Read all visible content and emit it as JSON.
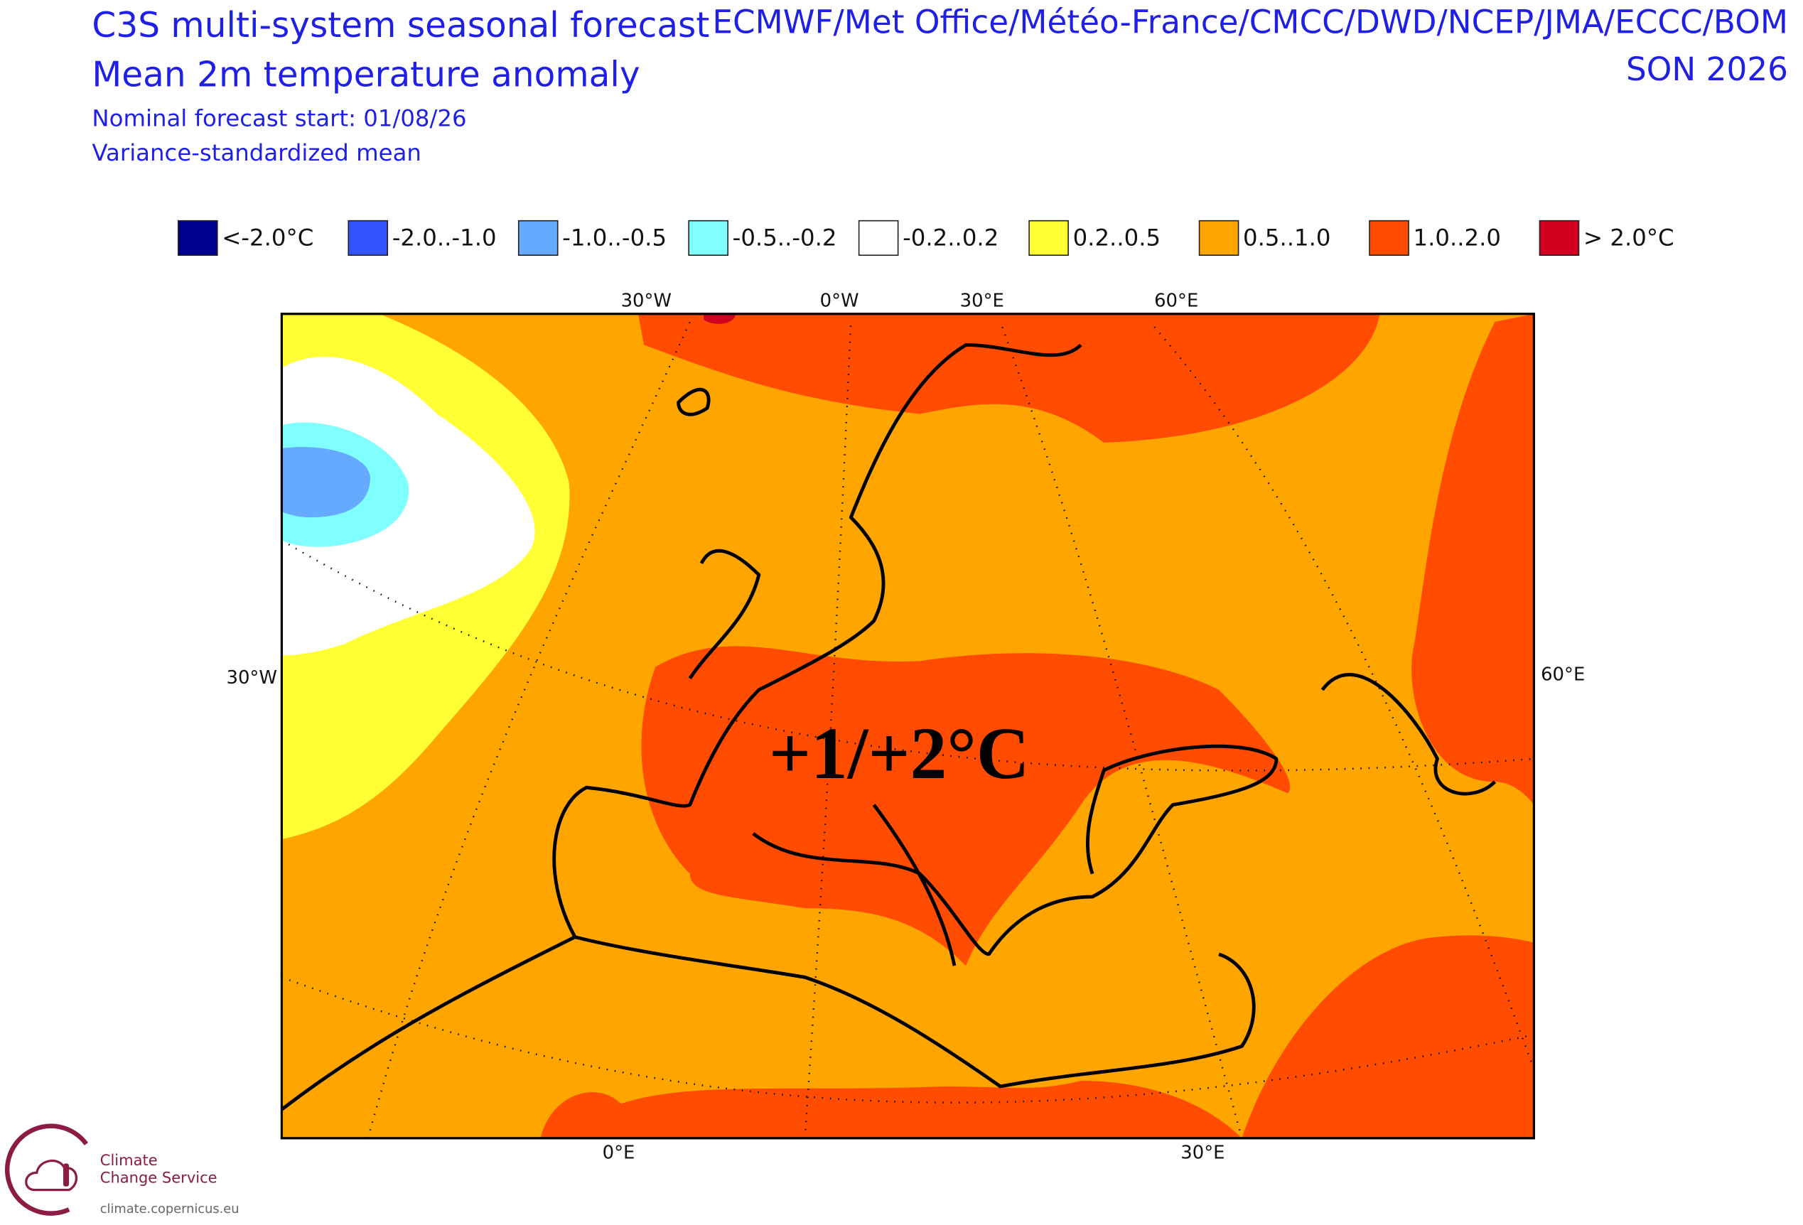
{
  "header": {
    "title": "C3S multi-system seasonal forecast",
    "subtitle": "Mean 2m temperature anomaly",
    "start": "Nominal forecast start: 01/08/26",
    "method": "Variance-standardized mean",
    "centres": "ECMWF/Met Office/Météo-France/CMCC/DWD/NCEP/JMA/ECCC/BOM",
    "period": "SON 2026"
  },
  "legend": {
    "items": [
      {
        "label": "<-2.0°C",
        "color": "#00008f"
      },
      {
        "label": "-2.0..-1.0",
        "color": "#3355ff"
      },
      {
        "label": "-1.0..-0.5",
        "color": "#66aaff"
      },
      {
        "label": "-0.5..-0.2",
        "color": "#80ffff"
      },
      {
        "label": "-0.2..0.2",
        "color": "#ffffff"
      },
      {
        "label": "0.2..0.5",
        "color": "#ffff33"
      },
      {
        "label": "0.5..1.0",
        "color": "#ffa500"
      },
      {
        "label": "1.0..2.0",
        "color": "#ff4c00"
      },
      {
        "label": "> 2.0°C",
        "color": "#d0001e"
      }
    ]
  },
  "map": {
    "graticule_labels": [
      "30°W",
      "0°W",
      "30°E",
      "60°E",
      "30°W",
      "60°E",
      "0°E",
      "30°E"
    ],
    "annotation": "+1/+2°C"
  },
  "logo": {
    "line1": "Climate",
    "line2": "Change Service",
    "url": "climate.copernicus.eu"
  }
}
